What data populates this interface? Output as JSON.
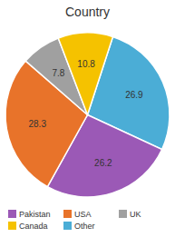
{
  "chart_data": {
    "type": "pie",
    "title": "Country",
    "values": [
      26.9,
      26.2,
      28.3,
      7.8,
      10.8
    ],
    "colors": [
      "#4badd6",
      "#9b59b6",
      "#e8732a",
      "#a0a0a0",
      "#f5c200"
    ],
    "data_labels": true,
    "series": [
      {
        "name": "Pakistan",
        "color": "#9b59b6"
      },
      {
        "name": "USA",
        "color": "#e8732a"
      },
      {
        "name": "UK",
        "color": "#a0a0a0"
      },
      {
        "name": "Canada",
        "color": "#f5c200"
      },
      {
        "name": "Other",
        "color": "#4badd6"
      }
    ],
    "legend": "bottom"
  }
}
